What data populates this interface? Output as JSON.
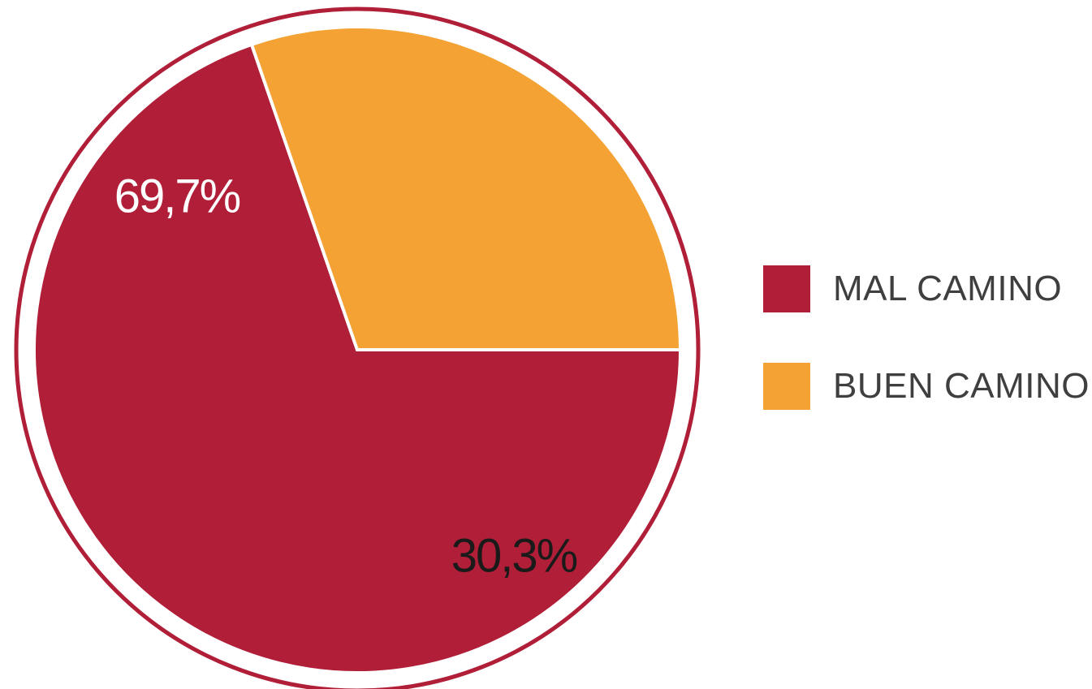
{
  "chart_data": {
    "type": "pie",
    "title": "",
    "series": [
      {
        "name": "MAL CAMINO",
        "value": 69.7,
        "label": "69,7%",
        "color": "#b01e38",
        "label_color": "#ffffff"
      },
      {
        "name": "BUEN CAMINO",
        "value": 30.3,
        "label": "30,3%",
        "color": "#f4a233",
        "label_color": "#1a1a1a"
      }
    ],
    "start_angle_deg": 0,
    "direction": "clockwise",
    "outer_ring_color": "#b01e38",
    "separator_color": "#ffffff",
    "legend_placement": "right"
  },
  "legend": {
    "items": [
      {
        "label": "MAL CAMINO",
        "color": "#b01e38"
      },
      {
        "label": "BUEN CAMINO",
        "color": "#f4a233"
      }
    ]
  }
}
